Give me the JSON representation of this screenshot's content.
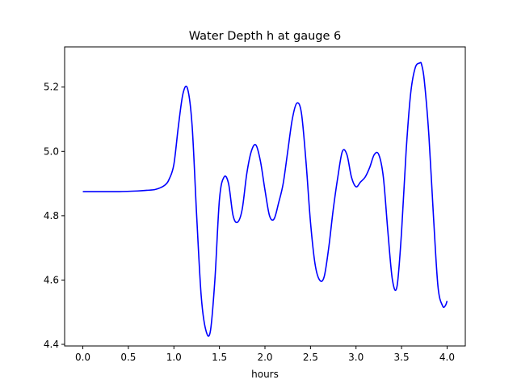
{
  "chart_data": {
    "type": "line",
    "title": "Water Depth h at gauge 6",
    "xlabel": "hours",
    "ylabel": "",
    "xlim": [
      -0.2,
      4.2
    ],
    "ylim": [
      4.395,
      5.325
    ],
    "xticks": [
      0.0,
      0.5,
      1.0,
      1.5,
      2.0,
      2.5,
      3.0,
      3.5,
      4.0
    ],
    "xtick_labels": [
      "0.0",
      "0.5",
      "1.0",
      "1.5",
      "2.0",
      "2.5",
      "3.0",
      "3.5",
      "4.0"
    ],
    "yticks": [
      4.4,
      4.6,
      4.8,
      5.0,
      5.2
    ],
    "ytick_labels": [
      "4.4",
      "4.6",
      "4.8",
      "5.0",
      "5.2"
    ],
    "grid": false,
    "series": [
      {
        "color": "#0000ff",
        "x": [
          0.0,
          0.2,
          0.4,
          0.6,
          0.7,
          0.8,
          0.9,
          0.95,
          1.0,
          1.05,
          1.1,
          1.15,
          1.2,
          1.25,
          1.3,
          1.35,
          1.4,
          1.45,
          1.5,
          1.55,
          1.6,
          1.65,
          1.7,
          1.75,
          1.8,
          1.85,
          1.9,
          1.95,
          2.0,
          2.05,
          2.1,
          2.15,
          2.2,
          2.25,
          2.3,
          2.35,
          2.4,
          2.45,
          2.5,
          2.55,
          2.6,
          2.65,
          2.7,
          2.75,
          2.8,
          2.85,
          2.9,
          2.95,
          3.0,
          3.05,
          3.1,
          3.15,
          3.2,
          3.25,
          3.3,
          3.35,
          3.4,
          3.45,
          3.5,
          3.55,
          3.6,
          3.65,
          3.7,
          3.72,
          3.75,
          3.8,
          3.85,
          3.9,
          3.95,
          3.98,
          4.0
        ],
        "y": [
          4.875,
          4.875,
          4.875,
          4.877,
          4.879,
          4.882,
          4.895,
          4.915,
          4.96,
          5.08,
          5.18,
          5.195,
          5.08,
          4.8,
          4.55,
          4.445,
          4.44,
          4.6,
          4.85,
          4.92,
          4.9,
          4.8,
          4.78,
          4.82,
          4.93,
          5.0,
          5.02,
          4.97,
          4.88,
          4.8,
          4.79,
          4.84,
          4.9,
          5.0,
          5.1,
          5.15,
          5.12,
          4.97,
          4.78,
          4.65,
          4.6,
          4.61,
          4.7,
          4.82,
          4.92,
          5.0,
          4.99,
          4.92,
          4.89,
          4.905,
          4.92,
          4.95,
          4.99,
          4.99,
          4.92,
          4.75,
          4.6,
          4.58,
          4.75,
          5.0,
          5.18,
          5.26,
          5.275,
          5.27,
          5.22,
          5.05,
          4.8,
          4.58,
          4.52,
          4.52,
          4.535
        ]
      }
    ]
  }
}
